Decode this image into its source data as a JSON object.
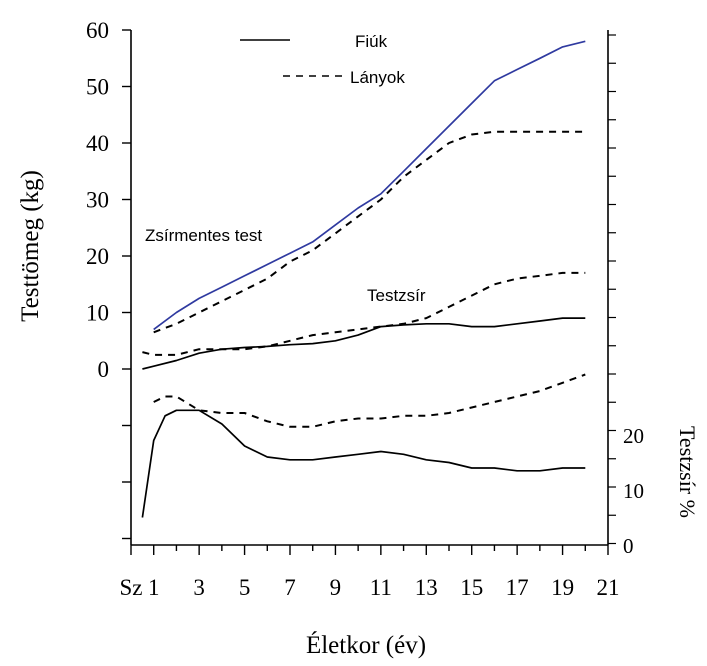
{
  "chart_data": {
    "type": "line",
    "ylabel": "Testtömeg (kg)",
    "y2label": "Testzsír %",
    "xlabel": "Életkor (év)",
    "x_tick_labels": [
      "Sz",
      "1",
      "3",
      "5",
      "7",
      "9",
      "11",
      "13",
      "15",
      "17",
      "19",
      "21"
    ],
    "x_tick_values": [
      0,
      1,
      3,
      5,
      7,
      9,
      11,
      13,
      15,
      17,
      19,
      21
    ],
    "xlim": [
      0,
      21
    ],
    "ylim": [
      0,
      60
    ],
    "y_tick_labels": [
      "60",
      "50",
      "40",
      "30",
      "20",
      "10",
      "0"
    ],
    "y2_tick_labels": [
      "20",
      "10",
      "0"
    ],
    "y2_ticks": [
      20,
      10,
      0
    ],
    "legend": {
      "placement": "top",
      "entries": [
        {
          "label": "Fiúk",
          "style": "solid"
        },
        {
          "label": "Lányok",
          "style": "dashed"
        }
      ]
    },
    "annotations": [
      {
        "text": "Zsírmentes test"
      },
      {
        "text": "Testzsír"
      }
    ],
    "panels": {
      "mass": {
        "series": [
          {
            "style": "solid",
            "color": "#2f3aa0",
            "group": "lean",
            "x": [
              1,
              2,
              3,
              4,
              5,
              6,
              7,
              8,
              9,
              10,
              11,
              12,
              13,
              14,
              15,
              16,
              17,
              18,
              19,
              20
            ],
            "y": [
              7,
              10,
              12.5,
              14.5,
              16.5,
              18.5,
              20.5,
              22.5,
              25.5,
              28.5,
              31,
              35,
              39,
              43,
              47,
              51,
              53,
              55,
              57,
              58
            ]
          },
          {
            "style": "dashed",
            "color": "#000000",
            "group": "lean",
            "x": [
              1,
              2,
              3,
              4,
              5,
              6,
              7,
              8,
              9,
              10,
              11,
              12,
              13,
              14,
              15,
              16,
              17,
              18,
              19,
              20
            ],
            "y": [
              6.5,
              8,
              10,
              12,
              14,
              16,
              19,
              21,
              24,
              27,
              30,
              34,
              37,
              40,
              41.5,
              42,
              42,
              42,
              42,
              42
            ]
          },
          {
            "style": "solid",
            "color": "#000000",
            "group": "fat",
            "x": [
              0.5,
              1,
              2,
              3,
              4,
              5,
              6,
              7,
              8,
              9,
              10,
              11,
              12,
              13,
              14,
              15,
              16,
              17,
              18,
              19,
              20
            ],
            "y": [
              0,
              0.5,
              1.5,
              2.8,
              3.5,
              3.8,
              4,
              4.3,
              4.5,
              5,
              6,
              7.5,
              7.8,
              8,
              8,
              7.5,
              7.5,
              8,
              8.5,
              9,
              9
            ]
          },
          {
            "style": "dashed",
            "color": "#000000",
            "group": "fat",
            "x": [
              0.5,
              1,
              2,
              3,
              4,
              5,
              6,
              7,
              8,
              9,
              10,
              11,
              12,
              13,
              14,
              15,
              16,
              17,
              18,
              19,
              20
            ],
            "y": [
              3,
              2.5,
              2.5,
              3.5,
              3.5,
              3.5,
              4,
              5,
              6,
              6.5,
              7,
              7.5,
              8,
              9,
              11,
              13,
              15,
              16,
              16.5,
              17,
              17
            ]
          }
        ]
      },
      "fat_percent": {
        "ylim": [
          0,
          30
        ],
        "series": [
          {
            "style": "solid",
            "color": "#000000",
            "x": [
              0.5,
              1,
              1.5,
              2,
              3,
              4,
              5,
              6,
              7,
              8,
              9,
              10,
              11,
              12,
              13,
              14,
              15,
              16,
              17,
              18,
              19,
              20
            ],
            "y": [
              5,
              19,
              23.5,
              24.5,
              24.5,
              22,
              18,
              16,
              15.5,
              15.5,
              16,
              16.5,
              17,
              16.5,
              15.5,
              15,
              14,
              14,
              13.5,
              13.5,
              14,
              14
            ]
          },
          {
            "style": "dashed",
            "color": "#000000",
            "x": [
              1,
              1.5,
              2,
              3,
              4,
              5,
              6,
              7,
              8,
              9,
              10,
              11,
              12,
              13,
              14,
              15,
              16,
              17,
              18,
              19,
              20
            ],
            "y": [
              26,
              27,
              27,
              24.5,
              24,
              24,
              22.5,
              21.5,
              21.5,
              22.5,
              23,
              23,
              23.5,
              23.5,
              24,
              25,
              26,
              27,
              28,
              29.5,
              31
            ]
          }
        ]
      }
    }
  }
}
